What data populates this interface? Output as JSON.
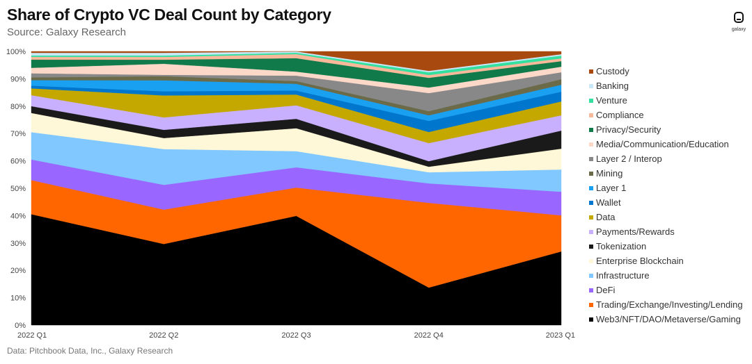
{
  "header": {
    "title": "Share of Crypto VC Deal Count by Category",
    "subtitle": "Source: Galaxy Research",
    "logo_text": "galaxy"
  },
  "footer": {
    "note": "Data: Pitchbook Data, Inc., Galaxy Research"
  },
  "chart_data": {
    "type": "area",
    "stacked": true,
    "percent": true,
    "categories": [
      "2022 Q1",
      "2022 Q2",
      "2022 Q3",
      "2022 Q4",
      "2023 Q1"
    ],
    "ylim": [
      0,
      100
    ],
    "yticks": [
      "0%",
      "10%",
      "20%",
      "30%",
      "40%",
      "50%",
      "60%",
      "70%",
      "80%",
      "90%",
      "100%"
    ],
    "grid": false,
    "legend_position": "right",
    "series": [
      {
        "name": "Web3/NFT/DAO/Metaverse/Gaming",
        "color": "#000000",
        "values": [
          40.5,
          29.5,
          40.5,
          13.5,
          26.5
        ]
      },
      {
        "name": "Trading/Exchange/Investing/Lending",
        "color": "#ff6600",
        "values": [
          12.5,
          12.5,
          10.5,
          30.5,
          13.0
        ]
      },
      {
        "name": "DeFi",
        "color": "#9966ff",
        "values": [
          7.5,
          9.0,
          7.5,
          7.0,
          8.5
        ]
      },
      {
        "name": "Infrastructure",
        "color": "#80c8ff",
        "values": [
          10.0,
          13.0,
          6.0,
          4.0,
          8.0
        ]
      },
      {
        "name": "Enterprise Blockchain",
        "color": "#fff8d8",
        "values": [
          7.0,
          4.0,
          8.5,
          2.0,
          7.5
        ]
      },
      {
        "name": "Tokenization",
        "color": "#1a1a1a",
        "values": [
          2.5,
          3.0,
          3.5,
          2.0,
          6.5
        ]
      },
      {
        "name": "Payments/Rewards",
        "color": "#c8b0ff",
        "values": [
          4.0,
          4.5,
          5.0,
          6.5,
          5.5
        ]
      },
      {
        "name": "Data",
        "color": "#c4a800",
        "values": [
          2.5,
          8.0,
          4.0,
          4.0,
          5.0
        ]
      },
      {
        "name": "Wallet",
        "color": "#0077cc",
        "values": [
          1.0,
          1.5,
          1.5,
          4.0,
          3.5
        ]
      },
      {
        "name": "Layer 1",
        "color": "#1aa0f0",
        "values": [
          2.0,
          4.0,
          2.5,
          2.0,
          2.5
        ]
      },
      {
        "name": "Mining",
        "color": "#6b6b4a",
        "values": [
          1.0,
          1.5,
          1.0,
          1.5,
          2.0
        ]
      },
      {
        "name": "Layer 2 / Interop",
        "color": "#888888",
        "values": [
          1.5,
          0.5,
          2.0,
          6.5,
          2.5
        ]
      },
      {
        "name": "Media/Communication/Education",
        "color": "#fcd8c8",
        "values": [
          2.0,
          4.0,
          1.5,
          2.0,
          2.0
        ]
      },
      {
        "name": "Privacy/Security",
        "color": "#117a4a",
        "values": [
          3.0,
          1.5,
          5.0,
          3.5,
          2.0
        ]
      },
      {
        "name": "Compliance",
        "color": "#f8b89a",
        "values": [
          1.0,
          1.0,
          1.5,
          1.0,
          1.0
        ]
      },
      {
        "name": "Venture",
        "color": "#33e0a0",
        "values": [
          0.5,
          0.5,
          0.5,
          1.0,
          1.0
        ]
      },
      {
        "name": "Banking",
        "color": "#c8e8f8",
        "values": [
          1.0,
          1.0,
          0.5,
          0.5,
          0.5
        ]
      },
      {
        "name": "Custody",
        "color": "#a84a10",
        "values": [
          0.5,
          0.5,
          0.0,
          7.0,
          1.0
        ]
      }
    ]
  }
}
